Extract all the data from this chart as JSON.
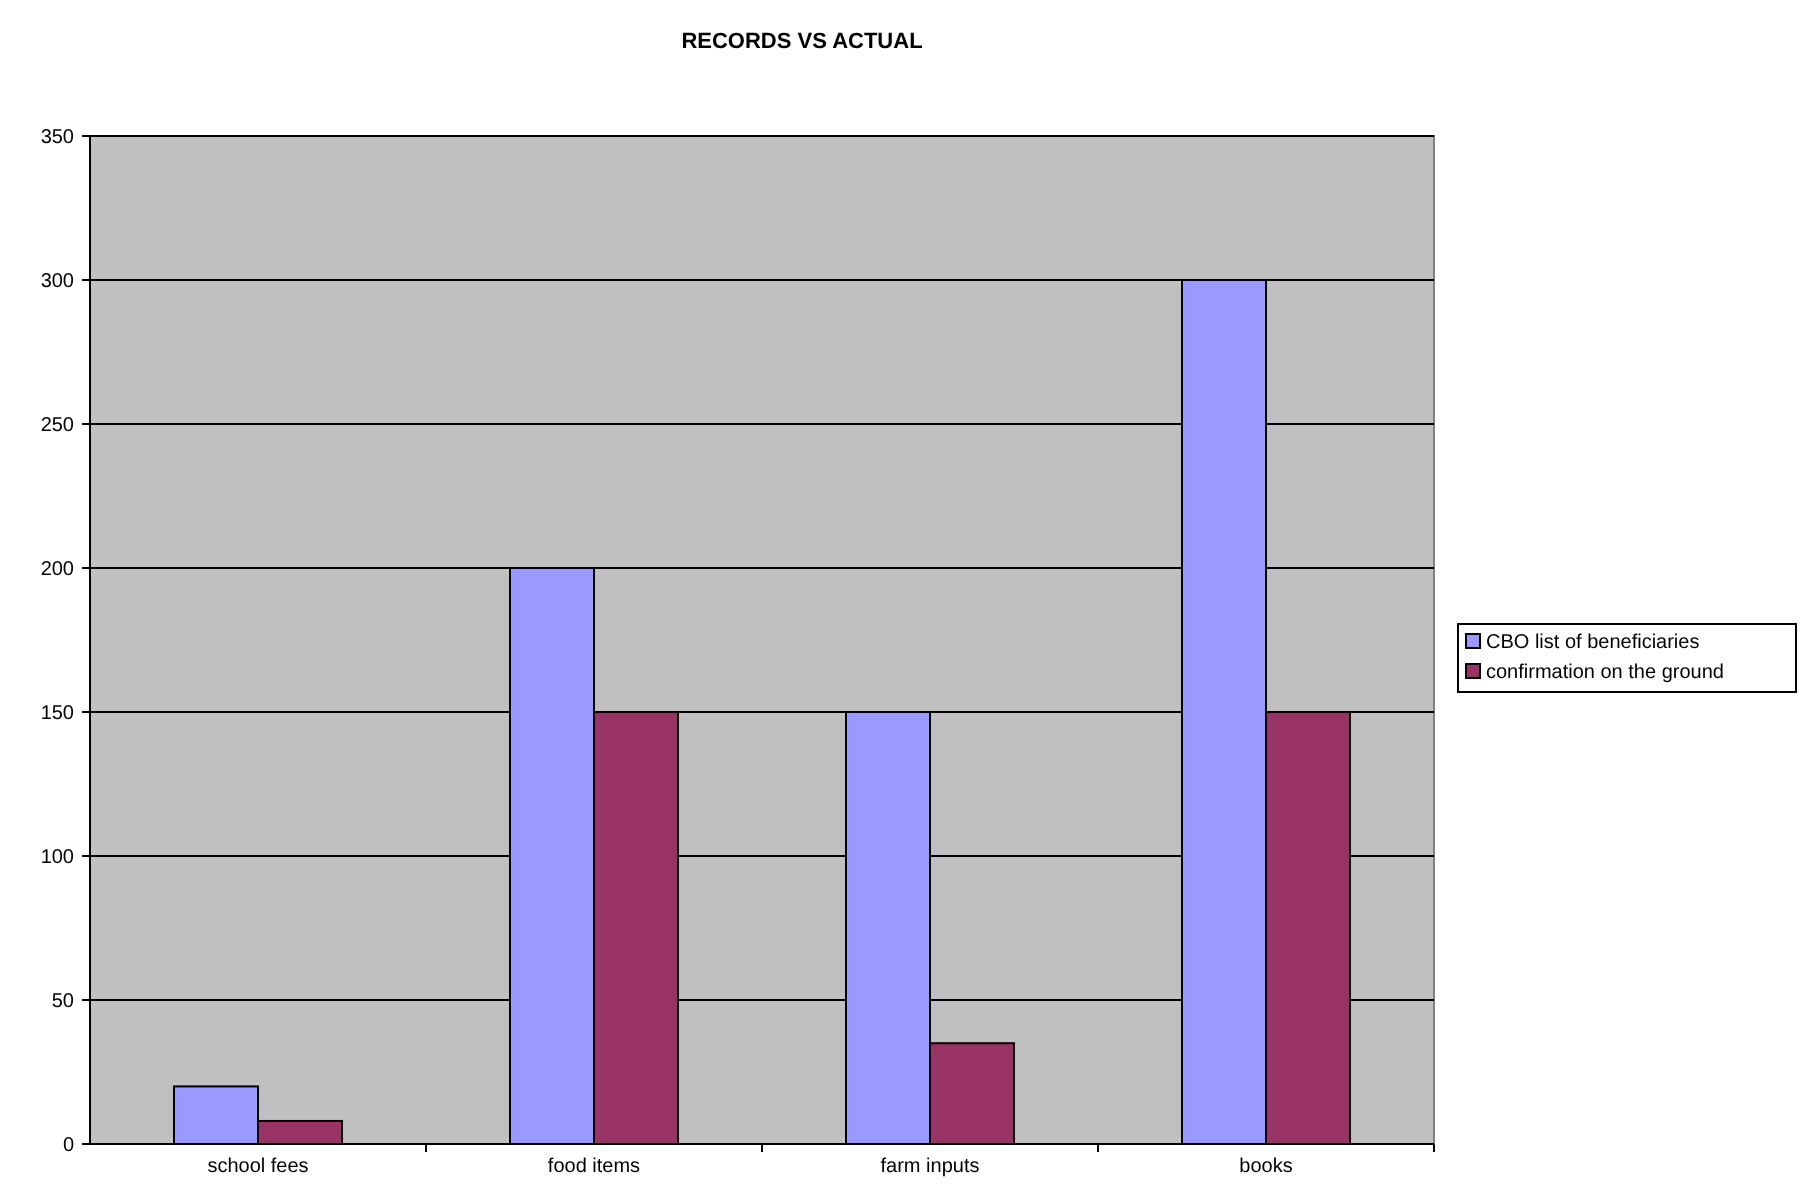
{
  "chart_data": {
    "type": "bar",
    "title": "RECORDS VS ACTUAL",
    "categories": [
      "school fees",
      "food items",
      "farm inputs",
      "books"
    ],
    "series": [
      {
        "name": "CBO list of beneficiaries",
        "color": "#9999ff",
        "values": [
          20,
          200,
          150,
          300
        ]
      },
      {
        "name": "confirmation on the ground",
        "color": "#993366",
        "values": [
          8,
          150,
          35,
          150
        ]
      }
    ],
    "ylim": [
      0,
      350
    ],
    "yticks": [
      0,
      50,
      100,
      150,
      200,
      250,
      300,
      350
    ],
    "grid": "y",
    "legend": "right"
  }
}
